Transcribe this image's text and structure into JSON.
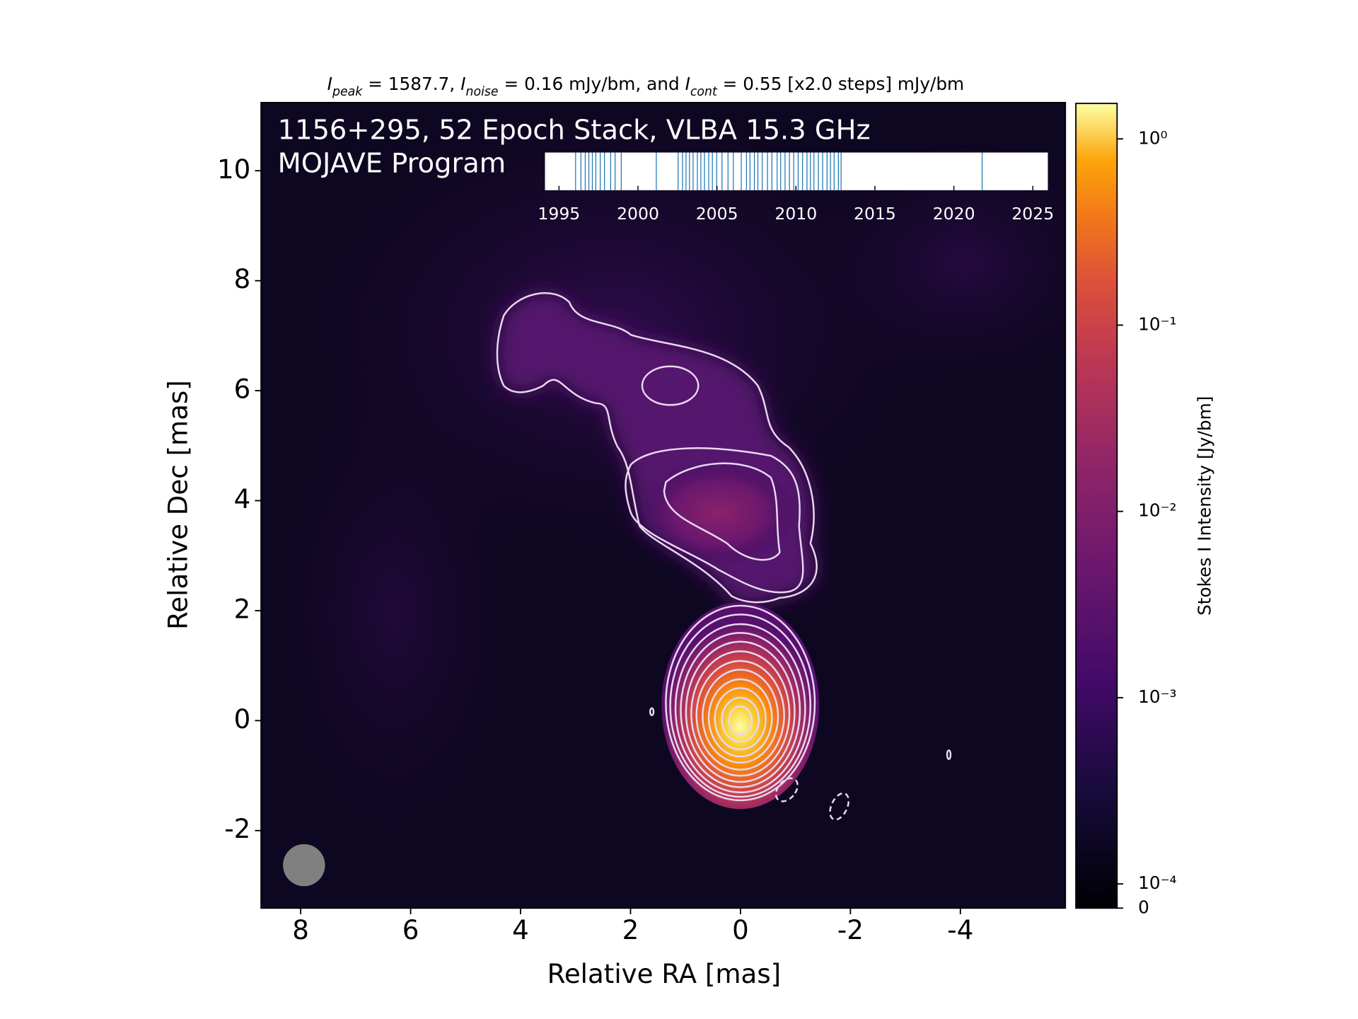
{
  "chart_data": {
    "type": "image",
    "title_parts": [
      {
        "text": "I",
        "italic": true
      },
      {
        "text": "peak",
        "sub": true
      },
      {
        "text": " = 1587.7, "
      },
      {
        "text": "I",
        "italic": true
      },
      {
        "text": "noise",
        "sub": true
      },
      {
        "text": " = 0.16 mJy/bm, and "
      },
      {
        "text": "I",
        "italic": true
      },
      {
        "text": "cont",
        "sub": true
      },
      {
        "text": " = 0.55 [x2.0 steps] mJy/bm"
      }
    ],
    "annotation": [
      "1156+295, 52 Epoch Stack, VLBA 15.3 GHz",
      "MOJAVE Program"
    ],
    "xlabel": "Relative RA [mas]",
    "ylabel": "Relative Dec [mas]",
    "xlim": [
      8.72,
      -5.91
    ],
    "ylim": [
      -3.41,
      11.24
    ],
    "xticks": [
      8,
      6,
      4,
      2,
      0,
      -2,
      -4
    ],
    "yticks": [
      -2,
      0,
      2,
      4,
      6,
      8,
      10
    ],
    "colorbar": {
      "label": "Stokes I Intensity [Jy/bm]",
      "lim": [
        0,
        1.55
      ],
      "scale": "symlog",
      "linthresh": 0.0001,
      "linscale": 0.13,
      "ticks": [
        {
          "value": 1,
          "label": "10⁰"
        },
        {
          "value": 0.1,
          "label": "10⁻¹"
        },
        {
          "value": 0.01,
          "label": "10⁻²"
        },
        {
          "value": 0.001,
          "label": "10⁻³"
        },
        {
          "value": 0.0001,
          "label": "10⁻⁴"
        },
        0
      ]
    },
    "epochs": {
      "xlim": [
        1994.11,
        2025.95
      ],
      "xticks": [
        1995,
        2000,
        2005,
        2010,
        2015,
        2020,
        2025
      ],
      "color": "#1f77b4",
      "dates": [
        1996.05,
        1996.39,
        1996.66,
        1996.89,
        1997.11,
        1997.33,
        1997.61,
        1997.88,
        1998.27,
        1998.55,
        1998.94,
        2001.16,
        2002.54,
        2002.82,
        2003.04,
        2003.26,
        2003.49,
        2003.76,
        2003.98,
        2004.21,
        2004.48,
        2004.71,
        2004.98,
        2005.32,
        2005.7,
        2006.04,
        2006.54,
        2006.87,
        2007.09,
        2007.37,
        2007.59,
        2007.87,
        2008.2,
        2008.48,
        2008.81,
        2009.03,
        2009.31,
        2009.59,
        2009.86,
        2010.14,
        2010.42,
        2010.7,
        2010.92,
        2011.14,
        2011.42,
        2011.69,
        2011.97,
        2012.19,
        2012.42,
        2012.69,
        2012.86,
        2021.79
      ]
    }
  }
}
